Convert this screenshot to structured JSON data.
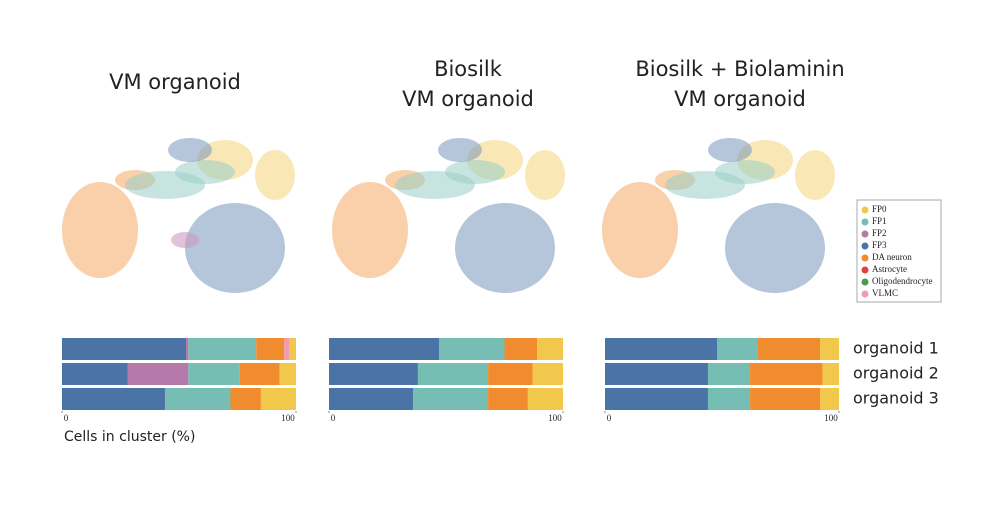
{
  "chart_data": [
    {
      "type": "bar",
      "title": [
        "VM organoid"
      ],
      "xlabel": "Cells in cluster (%)",
      "xlim": [
        0,
        100
      ],
      "xticks": [
        0,
        100
      ],
      "series": [
        {
          "name": "FP0",
          "color": "#f1c84b",
          "values": [
            3,
            7,
            15
          ]
        },
        {
          "name": "FP1",
          "color": "#76bdb4",
          "values": [
            29,
            22,
            28
          ]
        },
        {
          "name": "FP2",
          "color": "#b57aab",
          "values": [
            1,
            26,
            0
          ]
        },
        {
          "name": "FP3",
          "color": "#4a73a6",
          "values": [
            53,
            28,
            44
          ]
        },
        {
          "name": "DA neuron",
          "color": "#f08c2e",
          "values": [
            12,
            17,
            13
          ]
        },
        {
          "name": "Astrocyte",
          "color": "#e0403f",
          "values": [
            0,
            0,
            0
          ]
        },
        {
          "name": "Oligodendrocyte",
          "color": "#4e9a4a",
          "values": [
            0,
            0,
            0
          ]
        },
        {
          "name": "VLMC",
          "color": "#f09ab5",
          "values": [
            2,
            0,
            0
          ]
        }
      ]
    },
    {
      "type": "bar",
      "title": [
        "Biosilk",
        "VM organoid"
      ],
      "xlim": [
        0,
        100
      ],
      "xticks": [
        0,
        100
      ],
      "series": [
        {
          "name": "FP0",
          "color": "#f1c84b",
          "values": [
            11,
            13,
            15
          ]
        },
        {
          "name": "FP1",
          "color": "#76bdb4",
          "values": [
            28,
            30,
            32
          ]
        },
        {
          "name": "FP2",
          "color": "#b57aab",
          "values": [
            0,
            0,
            0
          ]
        },
        {
          "name": "FP3",
          "color": "#4a73a6",
          "values": [
            47,
            38,
            36
          ]
        },
        {
          "name": "DA neuron",
          "color": "#f08c2e",
          "values": [
            14,
            19,
            17
          ]
        },
        {
          "name": "Astrocyte",
          "color": "#e0403f",
          "values": [
            0,
            0,
            0
          ]
        },
        {
          "name": "Oligodendrocyte",
          "color": "#4e9a4a",
          "values": [
            0,
            0,
            0
          ]
        },
        {
          "name": "VLMC",
          "color": "#f09ab5",
          "values": [
            0,
            0,
            0
          ]
        }
      ]
    },
    {
      "type": "bar",
      "title": [
        "Biosilk + Biolaminin",
        "VM organoid"
      ],
      "xlim": [
        0,
        100
      ],
      "xticks": [
        0,
        100
      ],
      "categories": [
        "organoid 1",
        "organoid 2",
        "organoid 3"
      ],
      "series": [
        {
          "name": "FP0",
          "color": "#f1c84b",
          "values": [
            8,
            7,
            8
          ]
        },
        {
          "name": "FP1",
          "color": "#76bdb4",
          "values": [
            17,
            18,
            18
          ]
        },
        {
          "name": "FP2",
          "color": "#b57aab",
          "values": [
            0,
            0,
            0
          ]
        },
        {
          "name": "FP3",
          "color": "#4a73a6",
          "values": [
            48,
            44,
            44
          ]
        },
        {
          "name": "DA neuron",
          "color": "#f08c2e",
          "values": [
            27,
            31,
            30
          ]
        },
        {
          "name": "Astrocyte",
          "color": "#e0403f",
          "values": [
            0,
            0,
            0
          ]
        },
        {
          "name": "Oligodendrocyte",
          "color": "#4e9a4a",
          "values": [
            0,
            0,
            0
          ]
        },
        {
          "name": "VLMC",
          "color": "#f09ab5",
          "values": [
            0,
            0,
            0
          ]
        }
      ]
    }
  ]
}
